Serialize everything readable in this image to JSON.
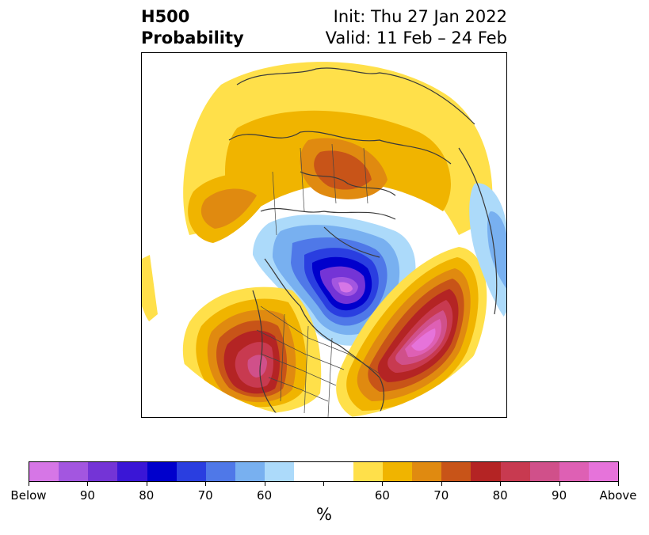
{
  "header": {
    "title_line1": "H500",
    "title_line2": "Probability",
    "init_label": "Init: Thu 27 Jan 2022",
    "valid_label": "Valid: 11 Feb – 24 Feb"
  },
  "map": {
    "projection": "polar-stereographic",
    "field": "500 hPa height anomaly probability",
    "regions": [
      {
        "name": "below-normal-center",
        "category": "Below",
        "max_level": "Below"
      },
      {
        "name": "above-normal-western-us",
        "category": "Above",
        "max_level": "90"
      },
      {
        "name": "above-normal-north-atlantic",
        "category": "Above",
        "max_level": "Above"
      },
      {
        "name": "above-normal-polar-ring",
        "category": "Above",
        "max_level": "70"
      }
    ]
  },
  "colorbar": {
    "colors": [
      "#d676e6",
      "#a356e0",
      "#7434d6",
      "#3a16d6",
      "#0000cc",
      "#2a3ee0",
      "#4f78e8",
      "#78b0f0",
      "#acdafa",
      "#ffffff",
      "#ffffff",
      "#ffe04a",
      "#f0b400",
      "#e08a10",
      "#c85418",
      "#b42424",
      "#c83a50",
      "#d0508a",
      "#de60b4",
      "#e673da"
    ],
    "tick_labels": [
      "Below",
      "90",
      "80",
      "70",
      "60",
      "",
      "60",
      "70",
      "80",
      "90",
      "Above"
    ],
    "units_label": "%"
  }
}
